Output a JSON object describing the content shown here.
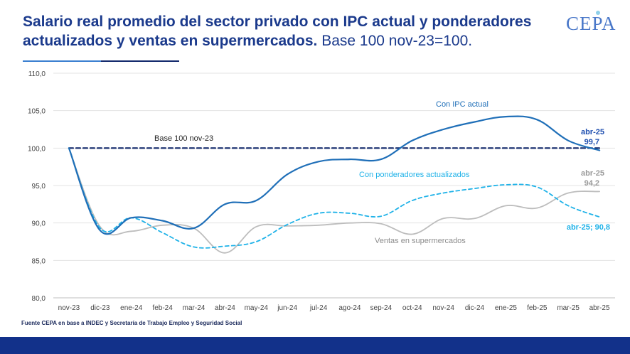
{
  "title": {
    "bold": "Salario real promedio del sector privado con IPC actual y ponderadores actualizados y ventas en supermercados.",
    "normal": "Base 100 nov-23=100."
  },
  "logo": {
    "text": "CEPA"
  },
  "source": "Fuente CEPA en base a INDEC y Secretaría de Trabajo Empleo y Seguridad Social",
  "colors": {
    "ipc_actual": "#1f6fb8",
    "ponderadores": "#1fb2e8",
    "supermercados": "#bdbdbd",
    "base": "#12286b",
    "title": "#1b3a8c",
    "footer": "#12318a"
  },
  "chart_data": {
    "type": "line",
    "categories": [
      "nov-23",
      "dic-23",
      "ene-24",
      "feb-24",
      "mar-24",
      "abr-24",
      "may-24",
      "jun-24",
      "jul-24",
      "ago-24",
      "sep-24",
      "oct-24",
      "nov-24",
      "dic-24",
      "ene-25",
      "feb-25",
      "mar-25",
      "abr-25"
    ],
    "ylim": [
      80,
      110
    ],
    "yticks": [
      80,
      85,
      90,
      95,
      100,
      105,
      110
    ],
    "ytick_labels": [
      "80,0",
      "85,0",
      "90,0",
      "95,0",
      "100,0",
      "105,0",
      "110,0"
    ],
    "series": [
      {
        "name": "Con IPC actual",
        "style": "solid",
        "values": [
          100.0,
          89.0,
          90.7,
          90.3,
          89.3,
          92.5,
          93.0,
          96.5,
          98.2,
          98.5,
          98.5,
          101.0,
          102.5,
          103.5,
          104.2,
          103.8,
          101.0,
          99.7
        ]
      },
      {
        "name": "Con ponderadores actualizados",
        "style": "dashed",
        "values": [
          100.0,
          89.3,
          90.7,
          88.7,
          86.8,
          86.9,
          87.5,
          89.8,
          91.3,
          91.3,
          90.9,
          93.0,
          94.0,
          94.6,
          95.1,
          94.8,
          92.3,
          90.8
        ]
      },
      {
        "name": "Ventas en supermercados",
        "style": "solid",
        "values": [
          100.0,
          89.5,
          88.9,
          89.7,
          89.3,
          86.0,
          89.5,
          89.6,
          89.7,
          90.0,
          89.9,
          88.5,
          90.6,
          90.6,
          92.3,
          92.0,
          94.0,
          94.2
        ]
      },
      {
        "name": "Base 100 nov-23",
        "style": "dashed",
        "values": [
          100,
          100,
          100,
          100,
          100,
          100,
          100,
          100,
          100,
          100,
          100,
          100,
          100,
          100,
          100,
          100,
          100,
          100
        ]
      }
    ],
    "annotations": {
      "ipc_label": "Con IPC actual",
      "pond_label": "Con ponderadores actualizados",
      "super_label": "Ventas en supermercados",
      "base_label": "Base 100 nov-23",
      "ipc_end_month": "abr-25",
      "ipc_end_value": "99,7",
      "super_end_month": "abr-25",
      "super_end_value": "94,2",
      "pond_end": "abr-25; 90,8"
    }
  }
}
